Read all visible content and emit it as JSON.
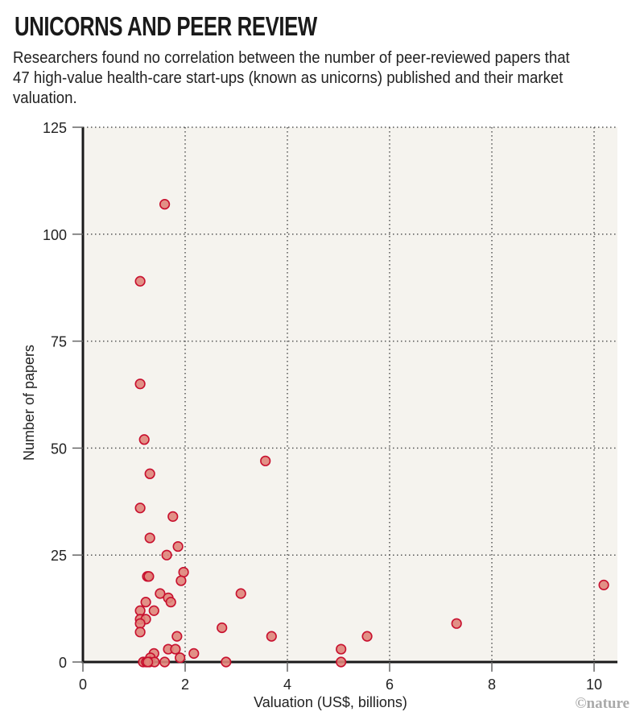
{
  "header": {
    "title": "UNICORNS AND PEER REVIEW",
    "subtitle": "Researchers found no correlation between the number of peer-reviewed papers that 47 high-value health-care start-ups (known as unicorns) published and their market valuation."
  },
  "credit": "©nature",
  "colors": {
    "plot_background": "#f5f3ee",
    "point_fill": "#e0857a",
    "point_stroke": "#c8102e",
    "axis": "#1a1a1a",
    "grid": "#555555"
  },
  "chart_data": {
    "type": "scatter",
    "title": "UNICORNS AND PEER REVIEW",
    "xlabel": "Valuation (US$, billions)",
    "ylabel": "Number of papers",
    "xlim": [
      0,
      10.5
    ],
    "ylim": [
      0,
      125
    ],
    "xticks": [
      0,
      2,
      4,
      6,
      8,
      10
    ],
    "yticks": [
      0,
      25,
      50,
      75,
      100,
      125
    ],
    "xtick_labels": [
      "0",
      "2",
      "4",
      "6",
      "8",
      "10"
    ],
    "ytick_labels": [
      "0",
      "25",
      "50",
      "75",
      "100",
      "125"
    ],
    "grid": true,
    "legend": "none",
    "points": [
      {
        "x": 1.6,
        "y": 107
      },
      {
        "x": 1.12,
        "y": 89
      },
      {
        "x": 1.12,
        "y": 65
      },
      {
        "x": 1.2,
        "y": 52
      },
      {
        "x": 1.31,
        "y": 44
      },
      {
        "x": 3.57,
        "y": 47
      },
      {
        "x": 1.12,
        "y": 36
      },
      {
        "x": 1.76,
        "y": 34
      },
      {
        "x": 1.31,
        "y": 29
      },
      {
        "x": 1.86,
        "y": 27
      },
      {
        "x": 1.64,
        "y": 25
      },
      {
        "x": 1.97,
        "y": 21
      },
      {
        "x": 1.26,
        "y": 20
      },
      {
        "x": 1.29,
        "y": 20
      },
      {
        "x": 1.92,
        "y": 19
      },
      {
        "x": 1.51,
        "y": 16
      },
      {
        "x": 3.09,
        "y": 16
      },
      {
        "x": 1.67,
        "y": 15
      },
      {
        "x": 1.72,
        "y": 14
      },
      {
        "x": 1.23,
        "y": 14
      },
      {
        "x": 1.12,
        "y": 12
      },
      {
        "x": 1.39,
        "y": 12
      },
      {
        "x": 1.12,
        "y": 10
      },
      {
        "x": 1.23,
        "y": 10
      },
      {
        "x": 1.12,
        "y": 9
      },
      {
        "x": 2.72,
        "y": 8
      },
      {
        "x": 7.31,
        "y": 9
      },
      {
        "x": 1.12,
        "y": 7
      },
      {
        "x": 1.84,
        "y": 6
      },
      {
        "x": 3.69,
        "y": 6
      },
      {
        "x": 5.56,
        "y": 6
      },
      {
        "x": 10.19,
        "y": 18
      },
      {
        "x": 1.39,
        "y": 2
      },
      {
        "x": 1.67,
        "y": 3
      },
      {
        "x": 1.81,
        "y": 3
      },
      {
        "x": 5.05,
        "y": 3
      },
      {
        "x": 2.17,
        "y": 2
      },
      {
        "x": 1.9,
        "y": 1
      },
      {
        "x": 1.32,
        "y": 1
      },
      {
        "x": 1.18,
        "y": 0
      },
      {
        "x": 1.24,
        "y": 0
      },
      {
        "x": 1.3,
        "y": 0
      },
      {
        "x": 1.4,
        "y": 0
      },
      {
        "x": 1.6,
        "y": 0
      },
      {
        "x": 1.27,
        "y": 0
      },
      {
        "x": 2.8,
        "y": 0
      },
      {
        "x": 5.05,
        "y": 0
      }
    ]
  }
}
